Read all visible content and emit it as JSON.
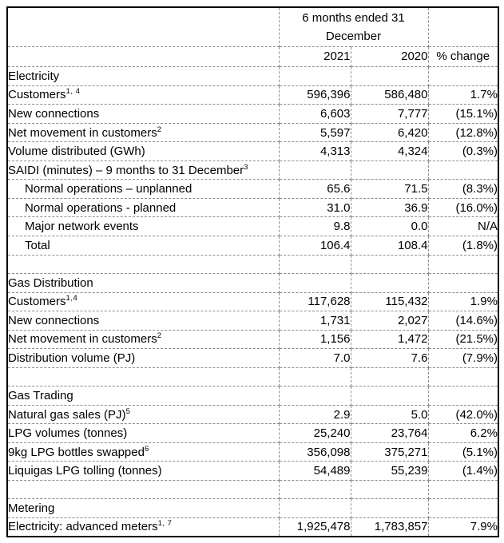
{
  "table": {
    "grid_color": "#8c8c8c",
    "border_color": "#000000",
    "text_color": "#000000",
    "header": {
      "period": "6 months ended 31 December",
      "year_current": "2021",
      "year_prior": "2020",
      "change_label": "% change"
    },
    "sections": [
      {
        "title": "Electricity",
        "spacer_after": true,
        "rows": [
          {
            "label": "Customers",
            "sup": "1, 4",
            "indent": false,
            "v2021": "596,396",
            "v2020": "586,480",
            "change": "1.7%"
          },
          {
            "label": "New connections",
            "sup": "",
            "indent": false,
            "v2021": "6,603",
            "v2020": "7,777",
            "change": "(15.1%)"
          },
          {
            "label": "Net movement in customers",
            "sup": "2",
            "indent": false,
            "v2021": "5,597",
            "v2020": "6,420",
            "change": "(12.8%)"
          },
          {
            "label": "Volume distributed (GWh)",
            "sup": "",
            "indent": false,
            "v2021": "4,313",
            "v2020": "4,324",
            "change": "(0.3%)"
          },
          {
            "label": "SAIDI (minutes) – 9 months to 31 December",
            "sup": "3",
            "indent": false,
            "v2021": "",
            "v2020": "",
            "change": ""
          },
          {
            "label": "Normal operations – unplanned",
            "sup": "",
            "indent": true,
            "v2021": "65.6",
            "v2020": "71.5",
            "change": "(8.3%)"
          },
          {
            "label": "Normal operations - planned",
            "sup": "",
            "indent": true,
            "v2021": "31.0",
            "v2020": "36.9",
            "change": "(16.0%)"
          },
          {
            "label": "Major network events",
            "sup": "",
            "indent": true,
            "v2021": "9.8",
            "v2020": "0.0",
            "change": "N/A"
          },
          {
            "label": "Total",
            "sup": "",
            "indent": true,
            "v2021": "106.4",
            "v2020": "108.4",
            "change": "(1.8%)"
          }
        ]
      },
      {
        "title": "Gas Distribution",
        "spacer_after": true,
        "rows": [
          {
            "label": "Customers",
            "sup": "1,4",
            "indent": false,
            "v2021": "117,628",
            "v2020": "115,432",
            "change": "1.9%"
          },
          {
            "label": "New connections",
            "sup": "",
            "indent": false,
            "v2021": "1,731",
            "v2020": "2,027",
            "change": "(14.6%)"
          },
          {
            "label": "Net movement in customers",
            "sup": "2",
            "indent": false,
            "v2021": "1,156",
            "v2020": "1,472",
            "change": "(21.5%)"
          },
          {
            "label": "Distribution volume (PJ)",
            "sup": "",
            "indent": false,
            "v2021": "7.0",
            "v2020": "7.6",
            "change": "(7.9%)"
          }
        ]
      },
      {
        "title": "Gas Trading",
        "spacer_after": true,
        "rows": [
          {
            "label": "Natural gas sales (PJ)",
            "sup": "5",
            "indent": false,
            "v2021": "2.9",
            "v2020": "5.0",
            "change": "(42.0%)"
          },
          {
            "label": "LPG volumes (tonnes)",
            "sup": "",
            "indent": false,
            "v2021": "25,240",
            "v2020": "23,764",
            "change": "6.2%"
          },
          {
            "label": "9kg LPG bottles swapped",
            "sup": "6",
            "indent": false,
            "v2021": "356,098",
            "v2020": "375,271",
            "change": "(5.1%)"
          },
          {
            "label": "Liquigas LPG tolling (tonnes)",
            "sup": "",
            "indent": false,
            "v2021": "54,489",
            "v2020": "55,239",
            "change": "(1.4%)"
          }
        ]
      },
      {
        "title": "Metering",
        "spacer_after": false,
        "rows": [
          {
            "label": "Electricity: advanced meters",
            "sup": "1, 7",
            "indent": false,
            "v2021": "1,925,478",
            "v2020": "1,783,857",
            "change": "7.9%"
          }
        ]
      }
    ]
  }
}
